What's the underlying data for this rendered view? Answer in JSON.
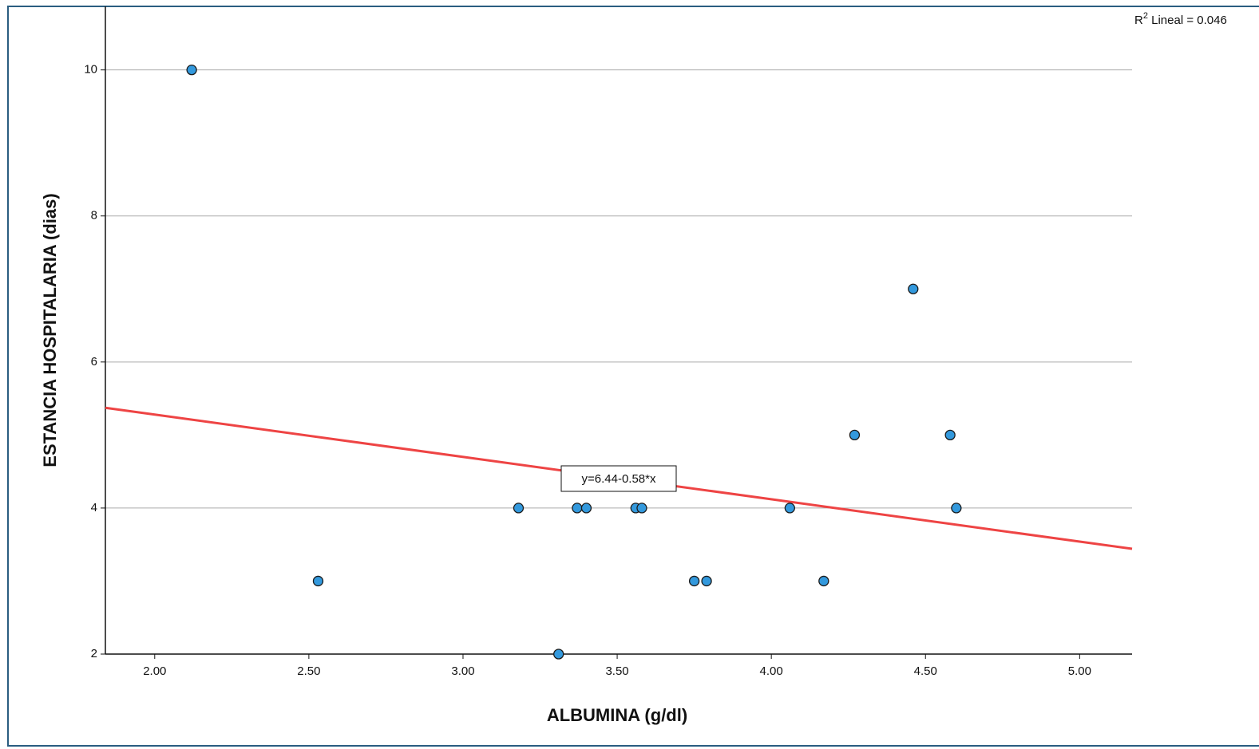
{
  "chart_data": {
    "type": "scatter",
    "x_label": "ALBUMINA (g/dl)",
    "y_label": "ESTANCIA HOSPITALARIA (dias)",
    "x": [
      2.12,
      2.53,
      3.18,
      3.31,
      3.37,
      3.4,
      3.56,
      3.58,
      3.75,
      3.79,
      4.06,
      4.17,
      4.27,
      4.46,
      4.58,
      4.6
    ],
    "values": [
      10,
      3,
      4,
      2,
      4,
      4,
      4,
      4,
      3,
      3,
      4,
      3,
      5,
      7,
      5,
      4
    ],
    "color": "#3399dd",
    "xlim": [
      1.84,
      5.17
    ],
    "ylim": [
      2,
      10.87
    ],
    "xticks": [
      {
        "value": 2,
        "label": "2.00"
      },
      {
        "value": 2.5,
        "label": "2.50"
      },
      {
        "value": 3,
        "label": "3.00"
      },
      {
        "value": 3.5,
        "label": "3.50"
      },
      {
        "value": 4,
        "label": "4.00"
      },
      {
        "value": 4.5,
        "label": "4.50"
      },
      {
        "value": 5,
        "label": "5.00"
      }
    ],
    "yticks": [
      2,
      4,
      6,
      8,
      10
    ],
    "grid": true,
    "fit_line": {
      "intercept": 6.44,
      "slope": -0.58,
      "label": "y=6.44-0.58*x",
      "color": "#ee4444"
    },
    "r2_label": {
      "symbol": "R",
      "superscript": "2",
      "text": " Lineal = 0.046"
    }
  }
}
